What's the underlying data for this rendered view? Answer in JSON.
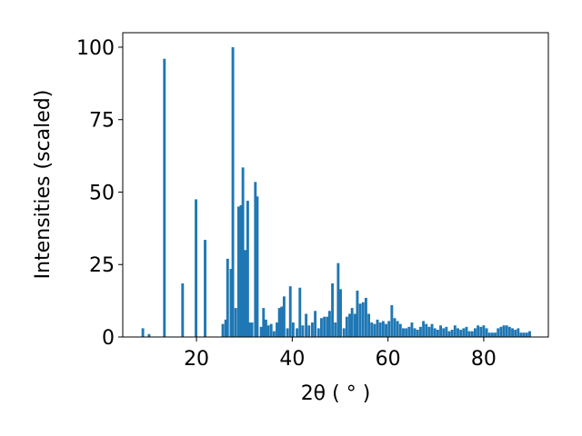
{
  "chart_data": {
    "type": "bar",
    "x_label": "2θ ( ° )",
    "y_label": "Intensities (scaled)",
    "color": "#1f77b4",
    "x": [
      8.8,
      10.1,
      13.3,
      17.1,
      19.9,
      21.8,
      25.5,
      26.1,
      26.5,
      27.2,
      27.6,
      28.2,
      28.8,
      29.3,
      29.7,
      30.2,
      30.7,
      31.1,
      31.6,
      32.3,
      32.7,
      33.5,
      34.0,
      34.5,
      35.0,
      35.6,
      36.2,
      36.8,
      37.3,
      37.8,
      38.3,
      39.0,
      39.6,
      40.2,
      41.0,
      41.6,
      42.2,
      42.9,
      43.5,
      44.2,
      44.8,
      45.5,
      46.1,
      46.7,
      47.3,
      47.8,
      48.4,
      49.0,
      49.6,
      50.1,
      50.8,
      51.4,
      52.0,
      52.5,
      53.1,
      53.6,
      54.2,
      54.8,
      55.4,
      56.0,
      56.6,
      57.2,
      57.8,
      58.4,
      59.0,
      59.6,
      60.2,
      60.8,
      61.4,
      62.0,
      62.6,
      63.2,
      63.8,
      64.4,
      65.0,
      65.6,
      66.2,
      66.8,
      67.4,
      68.0,
      68.6,
      69.2,
      69.8,
      70.4,
      71.0,
      71.6,
      72.2,
      72.8,
      73.4,
      74.0,
      74.6,
      75.2,
      75.8,
      76.4,
      77.0,
      77.6,
      78.2,
      78.8,
      79.4,
      80.0,
      80.6,
      81.2,
      81.8,
      82.4,
      83.0,
      83.6,
      84.2,
      84.8,
      85.4,
      86.0,
      86.6,
      87.2,
      87.8,
      88.4,
      89.0,
      89.6
    ],
    "values": [
      3,
      1,
      96,
      18.5,
      47.5,
      33.5,
      4.5,
      6,
      27,
      23.5,
      100,
      10,
      45,
      45.5,
      58.5,
      30,
      47,
      5,
      5,
      53.5,
      48.5,
      3.5,
      10,
      6,
      4,
      4.5,
      2,
      5,
      10,
      10.5,
      14,
      3,
      17.5,
      5,
      3,
      17,
      4,
      8,
      4,
      5,
      9,
      3,
      6.5,
      7,
      7,
      9,
      18.5,
      5,
      25.5,
      16.5,
      3,
      7,
      8,
      10,
      8,
      16,
      11.5,
      12,
      13.5,
      8,
      5,
      4.5,
      6,
      5,
      5.5,
      4.5,
      5.5,
      11,
      6.5,
      5.5,
      4.5,
      3,
      3,
      3.5,
      5,
      3,
      2.5,
      3.5,
      5.5,
      4.5,
      3.5,
      4.5,
      3,
      2.5,
      4,
      3,
      3.5,
      2,
      2.5,
      4,
      3,
      2.5,
      3,
      3.5,
      2,
      2,
      3,
      4,
      3.5,
      4,
      3,
      1.5,
      1.5,
      1.5,
      3,
      3.5,
      4,
      4,
      3.5,
      3,
      2.5,
      3,
      1.5,
      1.5,
      1.5,
      2
    ],
    "xlim": [
      4.6,
      93.5
    ],
    "ylim": [
      0,
      105
    ],
    "xticks": [
      20,
      40,
      60,
      80
    ],
    "yticks": [
      0,
      25,
      50,
      75,
      100
    ]
  }
}
